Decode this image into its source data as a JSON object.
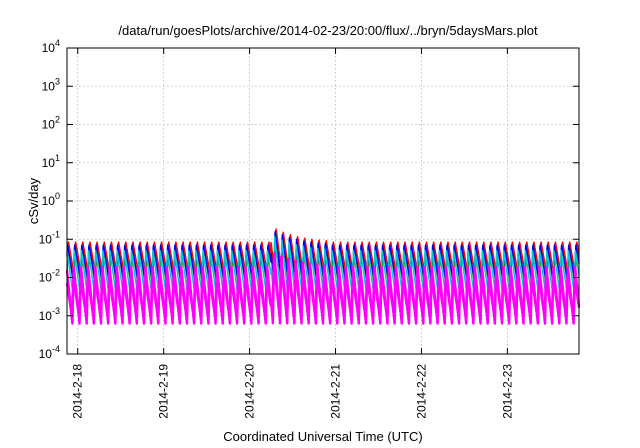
{
  "chart_data": {
    "type": "line",
    "title": "/data/run/goesPlots/archive/2014-02-23/20:00/flux/../bryn/5daysMars.plot",
    "xlabel": "Coordinated Universal Time (UTC)",
    "ylabel": "cSv/day",
    "y_scale": "log",
    "ylim": [
      0.0001,
      10000
    ],
    "xlim": [
      "2014-02-17T21:00",
      "2014-02-23T20:00"
    ],
    "grid": true,
    "legend": "none",
    "x_ticks": [
      "2014-2-18",
      "2014-2-19",
      "2014-2-20",
      "2014-2-21",
      "2014-2-22",
      "2014-2-23"
    ],
    "y_ticks": [
      {
        "base": "10",
        "exp": "-4"
      },
      {
        "base": "10",
        "exp": "-3"
      },
      {
        "base": "10",
        "exp": "-2"
      },
      {
        "base": "10",
        "exp": "-1"
      },
      {
        "base": "10",
        "exp": "0"
      },
      {
        "base": "10",
        "exp": "1"
      },
      {
        "base": "10",
        "exp": "2"
      },
      {
        "base": "10",
        "exp": "3"
      },
      {
        "base": "10",
        "exp": "4"
      }
    ],
    "cycles_per_day": 12,
    "event": {
      "start": "2014-02-20T06:00",
      "end": "2014-02-20T22:00",
      "peak_factor": 2.6
    },
    "series": [
      {
        "color": "#ff0000",
        "peak": 0.09,
        "trough": 0.012
      },
      {
        "color": "#00aa00",
        "peak": 0.07,
        "trough": 0.006
      },
      {
        "color": "#0000ff",
        "peak": 0.075,
        "trough": 0.009
      },
      {
        "color": "#00cccc",
        "peak": 0.05,
        "trough": 0.004
      },
      {
        "color": "#ff00ff",
        "peak": 0.02,
        "trough": 0.0006
      },
      {
        "color": "#ff00ff",
        "peak": 0.01,
        "trough": 0.0009
      }
    ]
  }
}
